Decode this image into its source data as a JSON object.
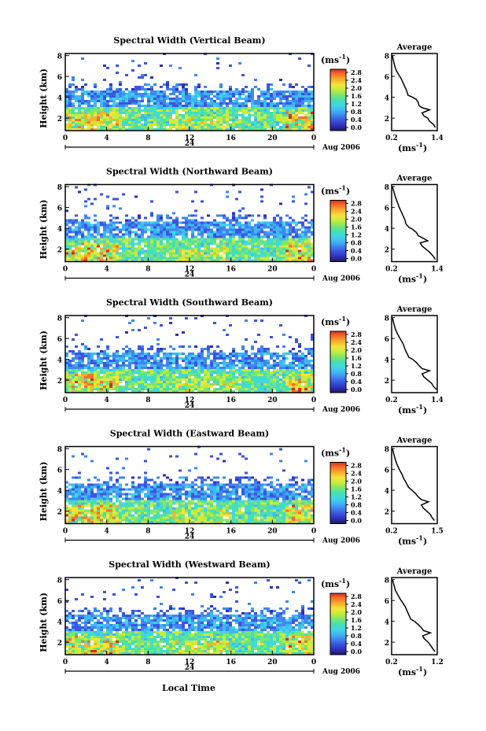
{
  "figure": {
    "xlabel": "Local Time",
    "date_label": "Aug 2006",
    "day_label": "24",
    "colorbar_unit": "(ms",
    "colorbar_unit_sup": "-1",
    "colorbar_unit_close": ")",
    "avg_unit": "(ms",
    "avg_unit_sup": "-1",
    "avg_unit_close": ")"
  },
  "colors": {
    "scale": [
      "#1a1a5a",
      "#2f2fb8",
      "#3a55e0",
      "#3f86f0",
      "#3fb8f5",
      "#40d8e0",
      "#45e0b0",
      "#7ee66a",
      "#c8ec3a",
      "#f6e43a",
      "#f9b02c",
      "#f4722a",
      "#e02a1e"
    ]
  },
  "chart_data": [
    {
      "type": "heatmap",
      "title": "Spectral Width (Vertical Beam)",
      "ylabel": "Height (km)",
      "xlim": [
        0,
        24
      ],
      "ylim": [
        0.8,
        8.2
      ],
      "xticks": [
        "0",
        "4",
        "8",
        "12",
        "16",
        "20",
        "0"
      ],
      "yticks": [
        "2",
        "4",
        "6",
        "8"
      ],
      "colorbar": {
        "ticks": [
          "2.8",
          "2.4",
          "2.0",
          "1.6",
          "1.2",
          "0.8",
          "0.4",
          "0.0"
        ],
        "range": [
          0,
          2.8
        ]
      },
      "average": {
        "title": "Average",
        "xticks": [
          "0.2",
          "1.4"
        ],
        "xlim": [
          0.2,
          1.4
        ],
        "ylim": [
          0.8,
          8.2
        ],
        "yticks": [
          "2",
          "4",
          "6",
          "8"
        ],
        "profile": [
          [
            0.22,
            8.0
          ],
          [
            0.25,
            7.5
          ],
          [
            0.28,
            7.0
          ],
          [
            0.32,
            6.6
          ],
          [
            0.38,
            6.2
          ],
          [
            0.45,
            5.8
          ],
          [
            0.5,
            5.4
          ],
          [
            0.55,
            5.0
          ],
          [
            0.6,
            4.6
          ],
          [
            0.63,
            4.2
          ],
          [
            0.75,
            4.0
          ],
          [
            0.85,
            3.8
          ],
          [
            0.9,
            3.5
          ],
          [
            0.92,
            3.2
          ],
          [
            1.0,
            3.0
          ],
          [
            1.2,
            2.8
          ],
          [
            1.0,
            2.5
          ],
          [
            1.05,
            2.2
          ],
          [
            1.15,
            2.0
          ],
          [
            1.2,
            1.7
          ],
          [
            1.3,
            1.4
          ],
          [
            1.35,
            1.1
          ]
        ]
      }
    },
    {
      "type": "heatmap",
      "title": "Spectral Width (Northward Beam)",
      "ylabel": "Height (km)",
      "xlim": [
        0,
        24
      ],
      "ylim": [
        0.8,
        8.2
      ],
      "xticks": [
        "0",
        "4",
        "8",
        "12",
        "16",
        "20",
        "0"
      ],
      "yticks": [
        "2",
        "4",
        "6",
        "8"
      ],
      "colorbar": {
        "ticks": [
          "2.8",
          "2.4",
          "2.0",
          "1.6",
          "1.2",
          "0.8",
          "0.4",
          "0.0"
        ],
        "range": [
          0,
          2.8
        ]
      },
      "average": {
        "title": "Average",
        "xticks": [
          "0.2",
          "1.4"
        ],
        "xlim": [
          0.2,
          1.4
        ],
        "ylim": [
          0.8,
          8.2
        ],
        "yticks": [
          "2",
          "4",
          "6",
          "8"
        ],
        "profile": [
          [
            0.22,
            8.0
          ],
          [
            0.26,
            7.5
          ],
          [
            0.3,
            7.0
          ],
          [
            0.35,
            6.5
          ],
          [
            0.4,
            6.0
          ],
          [
            0.45,
            5.6
          ],
          [
            0.5,
            5.2
          ],
          [
            0.55,
            4.8
          ],
          [
            0.58,
            4.4
          ],
          [
            0.65,
            4.1
          ],
          [
            0.75,
            3.9
          ],
          [
            0.85,
            3.6
          ],
          [
            0.9,
            3.3
          ],
          [
            1.05,
            3.0
          ],
          [
            1.15,
            2.8
          ],
          [
            0.95,
            2.6
          ],
          [
            1.0,
            2.3
          ],
          [
            1.1,
            2.0
          ],
          [
            1.2,
            1.7
          ],
          [
            1.3,
            1.3
          ],
          [
            1.35,
            1.0
          ]
        ]
      }
    },
    {
      "type": "heatmap",
      "title": "Spectral Width (Southward Beam)",
      "ylabel": "Height (km)",
      "xlim": [
        0,
        24
      ],
      "ylim": [
        0.8,
        8.2
      ],
      "xticks": [
        "0",
        "4",
        "8",
        "12",
        "16",
        "20",
        "0"
      ],
      "yticks": [
        "2",
        "4",
        "6",
        "8"
      ],
      "colorbar": {
        "ticks": [
          "2.8",
          "2.4",
          "2.0",
          "1.6",
          "1.2",
          "0.8",
          "0.4",
          "0.0"
        ],
        "range": [
          0,
          2.8
        ]
      },
      "average": {
        "title": "Average",
        "xticks": [
          "0.2",
          "1.4"
        ],
        "xlim": [
          0.2,
          1.4
        ],
        "ylim": [
          0.8,
          8.2
        ],
        "yticks": [
          "2",
          "4",
          "6",
          "8"
        ],
        "profile": [
          [
            0.22,
            8.0
          ],
          [
            0.26,
            7.4
          ],
          [
            0.3,
            6.9
          ],
          [
            0.36,
            6.4
          ],
          [
            0.42,
            6.0
          ],
          [
            0.5,
            5.5
          ],
          [
            0.55,
            5.0
          ],
          [
            0.6,
            4.6
          ],
          [
            0.65,
            4.2
          ],
          [
            0.75,
            4.0
          ],
          [
            0.85,
            3.7
          ],
          [
            0.92,
            3.4
          ],
          [
            1.0,
            3.1
          ],
          [
            1.2,
            2.9
          ],
          [
            1.0,
            2.6
          ],
          [
            1.05,
            2.3
          ],
          [
            1.15,
            2.0
          ],
          [
            1.25,
            1.7
          ],
          [
            1.3,
            1.4
          ],
          [
            1.38,
            1.1
          ]
        ]
      }
    },
    {
      "type": "heatmap",
      "title": "Spectral Width (Eastward Beam)",
      "ylabel": "Height (km)",
      "xlim": [
        0,
        24
      ],
      "ylim": [
        0.8,
        8.2
      ],
      "xticks": [
        "0",
        "4",
        "8",
        "12",
        "16",
        "20",
        "0"
      ],
      "yticks": [
        "2",
        "4",
        "6",
        "8"
      ],
      "colorbar": {
        "ticks": [
          "2.8",
          "2.4",
          "2.0",
          "1.6",
          "1.2",
          "0.8",
          "0.4",
          "0.0"
        ],
        "range": [
          0,
          2.8
        ]
      },
      "average": {
        "title": "Average",
        "xticks": [
          "0.2",
          "1.5"
        ],
        "xlim": [
          0.2,
          1.5
        ],
        "ylim": [
          0.8,
          8.2
        ],
        "yticks": [
          "2",
          "4",
          "6",
          "8"
        ],
        "profile": [
          [
            0.22,
            8.0
          ],
          [
            0.26,
            7.5
          ],
          [
            0.3,
            7.0
          ],
          [
            0.35,
            6.5
          ],
          [
            0.42,
            6.0
          ],
          [
            0.5,
            5.5
          ],
          [
            0.55,
            5.1
          ],
          [
            0.62,
            4.7
          ],
          [
            0.68,
            4.3
          ],
          [
            0.78,
            4.0
          ],
          [
            0.88,
            3.7
          ],
          [
            0.95,
            3.4
          ],
          [
            1.05,
            3.1
          ],
          [
            1.25,
            2.9
          ],
          [
            1.05,
            2.6
          ],
          [
            1.1,
            2.3
          ],
          [
            1.2,
            2.0
          ],
          [
            1.3,
            1.7
          ],
          [
            1.35,
            1.4
          ],
          [
            1.42,
            1.1
          ]
        ]
      }
    },
    {
      "type": "heatmap",
      "title": "Spectral Width (Westward Beam)",
      "ylabel": "Height (km)",
      "xlim": [
        0,
        24
      ],
      "ylim": [
        0.8,
        8.2
      ],
      "xticks": [
        "0",
        "4",
        "8",
        "12",
        "16",
        "20",
        "0"
      ],
      "yticks": [
        "2",
        "4",
        "6",
        "8"
      ],
      "colorbar": {
        "ticks": [
          "2.8",
          "2.4",
          "2.0",
          "1.6",
          "1.2",
          "0.8",
          "0.4",
          "0.0"
        ],
        "range": [
          0,
          2.8
        ]
      },
      "average": {
        "title": "Average",
        "xticks": [
          "0.2",
          "1.2"
        ],
        "xlim": [
          0.2,
          1.2
        ],
        "ylim": [
          0.8,
          8.2
        ],
        "yticks": [
          "2",
          "4",
          "6",
          "8"
        ],
        "profile": [
          [
            0.22,
            8.0
          ],
          [
            0.25,
            7.5
          ],
          [
            0.28,
            7.0
          ],
          [
            0.33,
            6.6
          ],
          [
            0.38,
            6.2
          ],
          [
            0.44,
            5.8
          ],
          [
            0.5,
            5.4
          ],
          [
            0.54,
            5.0
          ],
          [
            0.58,
            4.6
          ],
          [
            0.62,
            4.2
          ],
          [
            0.7,
            4.0
          ],
          [
            0.78,
            3.7
          ],
          [
            0.85,
            3.4
          ],
          [
            0.9,
            3.1
          ],
          [
            1.05,
            2.9
          ],
          [
            0.88,
            2.6
          ],
          [
            0.92,
            2.3
          ],
          [
            1.0,
            2.0
          ],
          [
            1.05,
            1.7
          ],
          [
            1.1,
            1.4
          ],
          [
            1.15,
            1.1
          ]
        ]
      }
    }
  ]
}
